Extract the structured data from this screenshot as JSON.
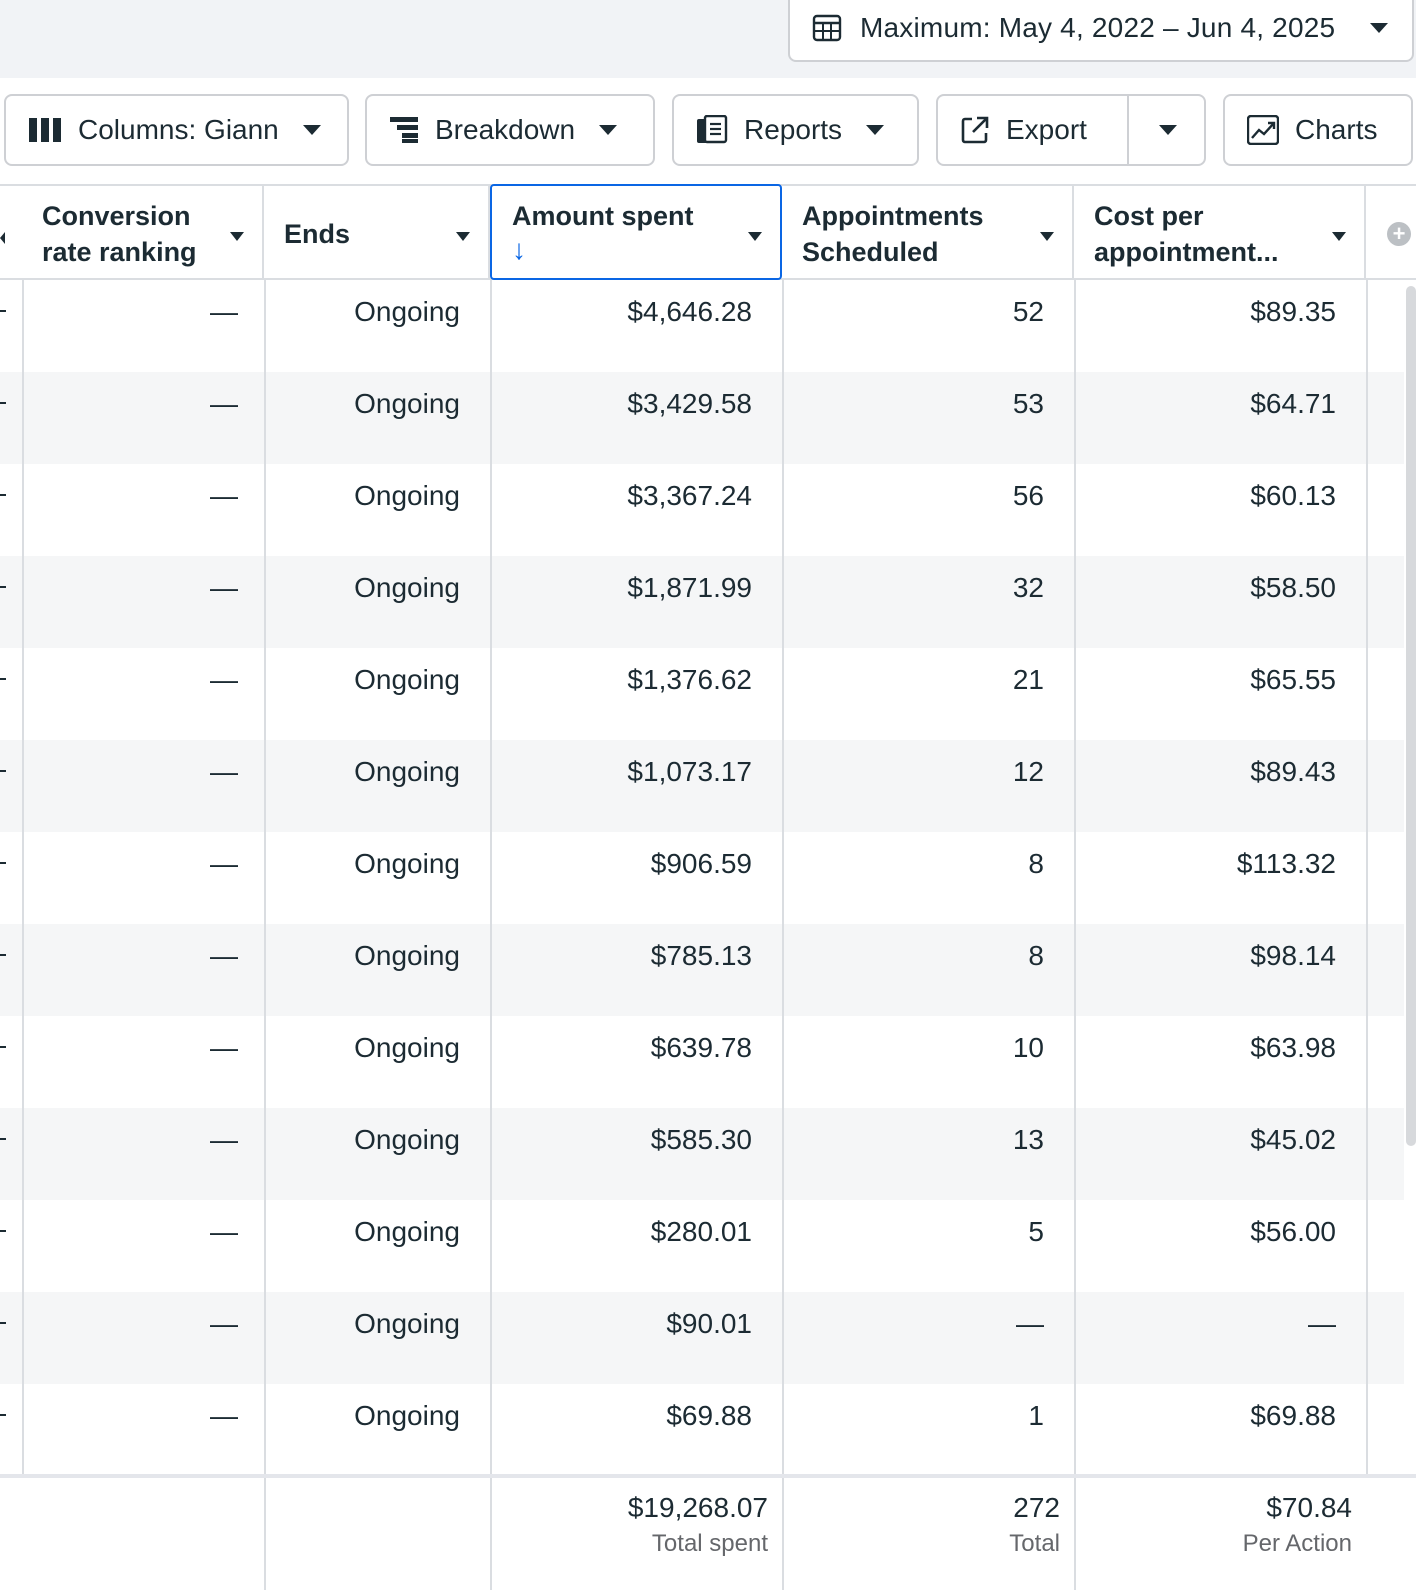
{
  "date_range": {
    "label": "Maximum: May 4, 2022 – Jun 4, 2025",
    "icon": "calendar-icon"
  },
  "toolbar": {
    "columns_label": "Columns: Giann",
    "breakdown_label": "Breakdown",
    "reports_label": "Reports",
    "export_label": "Export",
    "charts_label": "Charts"
  },
  "table": {
    "headers": {
      "conversion_rate_ranking": [
        "Conversion",
        "rate ranking"
      ],
      "ends": "Ends",
      "amount_spent": "Amount spent",
      "appointments_scheduled": [
        "Appointments",
        "Scheduled"
      ],
      "cost_per_appointment": [
        "Cost per",
        "appointment..."
      ]
    },
    "sort": {
      "column": "Amount spent",
      "direction": "descending"
    },
    "rows": [
      {
        "ranking": "—",
        "ends": "Ongoing",
        "amount": "$4,646.28",
        "appointments": "52",
        "cost": "$89.35"
      },
      {
        "ranking": "—",
        "ends": "Ongoing",
        "amount": "$3,429.58",
        "appointments": "53",
        "cost": "$64.71"
      },
      {
        "ranking": "—",
        "ends": "Ongoing",
        "amount": "$3,367.24",
        "appointments": "56",
        "cost": "$60.13"
      },
      {
        "ranking": "—",
        "ends": "Ongoing",
        "amount": "$1,871.99",
        "appointments": "32",
        "cost": "$58.50"
      },
      {
        "ranking": "—",
        "ends": "Ongoing",
        "amount": "$1,376.62",
        "appointments": "21",
        "cost": "$65.55"
      },
      {
        "ranking": "—",
        "ends": "Ongoing",
        "amount": "$1,073.17",
        "appointments": "12",
        "cost": "$89.43"
      },
      {
        "ranking": "—",
        "ends": "Ongoing",
        "amount": "$906.59",
        "appointments": "8",
        "cost": "$113.32"
      },
      {
        "ranking": "—",
        "ends": "Ongoing",
        "amount": "$785.13",
        "appointments": "8",
        "cost": "$98.14"
      },
      {
        "ranking": "—",
        "ends": "Ongoing",
        "amount": "$639.78",
        "appointments": "10",
        "cost": "$63.98"
      },
      {
        "ranking": "—",
        "ends": "Ongoing",
        "amount": "$585.30",
        "appointments": "13",
        "cost": "$45.02"
      },
      {
        "ranking": "—",
        "ends": "Ongoing",
        "amount": "$280.01",
        "appointments": "5",
        "cost": "$56.00"
      },
      {
        "ranking": "—",
        "ends": "Ongoing",
        "amount": "$90.01",
        "appointments": "—",
        "cost": "—"
      },
      {
        "ranking": "—",
        "ends": "Ongoing",
        "amount": "$69.88",
        "appointments": "1",
        "cost": "$69.88"
      }
    ],
    "totals": {
      "amount": "$19,268.07",
      "amount_label": "Total spent",
      "appointments": "272",
      "appointments_label": "Total",
      "cost": "$70.84",
      "cost_label": "Per Action"
    }
  },
  "colors": {
    "accent": "#0a66e4",
    "row_alt": "#f5f6f7",
    "border": "#dadde1"
  }
}
